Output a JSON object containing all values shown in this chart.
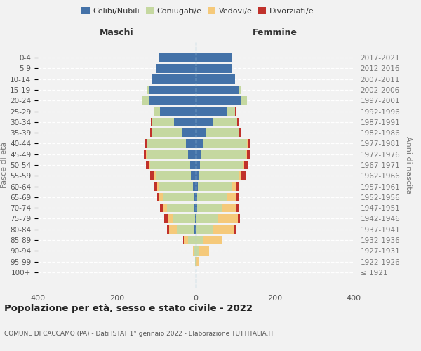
{
  "age_groups": [
    "0-4",
    "5-9",
    "10-14",
    "15-19",
    "20-24",
    "25-29",
    "30-34",
    "35-39",
    "40-44",
    "45-49",
    "50-54",
    "55-59",
    "60-64",
    "65-69",
    "70-74",
    "75-79",
    "80-84",
    "85-89",
    "90-94",
    "95-99",
    "100+"
  ],
  "birth_years": [
    "2017-2021",
    "2012-2016",
    "2007-2011",
    "2002-2006",
    "1997-2001",
    "1992-1996",
    "1987-1991",
    "1982-1986",
    "1977-1981",
    "1972-1976",
    "1967-1971",
    "1962-1966",
    "1957-1961",
    "1952-1956",
    "1947-1951",
    "1942-1946",
    "1937-1941",
    "1932-1936",
    "1927-1931",
    "1922-1926",
    "≤ 1921"
  ],
  "male_celibi": [
    95,
    100,
    110,
    120,
    120,
    90,
    55,
    35,
    25,
    20,
    15,
    12,
    8,
    4,
    3,
    2,
    3,
    0,
    0,
    0,
    0
  ],
  "male_coniugati": [
    0,
    0,
    0,
    5,
    15,
    15,
    55,
    75,
    100,
    105,
    100,
    90,
    85,
    80,
    70,
    55,
    45,
    20,
    5,
    1,
    0
  ],
  "male_vedovi": [
    0,
    0,
    0,
    0,
    0,
    0,
    0,
    0,
    0,
    1,
    2,
    3,
    5,
    8,
    10,
    15,
    20,
    10,
    3,
    1,
    0
  ],
  "male_divorziati": [
    0,
    0,
    0,
    0,
    0,
    2,
    3,
    5,
    5,
    5,
    10,
    10,
    8,
    5,
    8,
    8,
    5,
    2,
    0,
    0,
    0
  ],
  "fem_nubili": [
    90,
    90,
    100,
    110,
    115,
    80,
    45,
    25,
    20,
    12,
    10,
    8,
    5,
    3,
    3,
    2,
    2,
    0,
    0,
    0,
    0
  ],
  "fem_coniugate": [
    0,
    0,
    0,
    5,
    15,
    20,
    60,
    85,
    110,
    115,
    110,
    100,
    85,
    75,
    65,
    55,
    40,
    20,
    8,
    2,
    0
  ],
  "fem_vedove": [
    0,
    0,
    0,
    0,
    0,
    0,
    0,
    0,
    1,
    2,
    3,
    8,
    12,
    25,
    35,
    50,
    55,
    45,
    25,
    5,
    0
  ],
  "fem_divorziate": [
    0,
    0,
    0,
    0,
    0,
    2,
    3,
    5,
    8,
    8,
    10,
    12,
    8,
    5,
    5,
    5,
    5,
    0,
    0,
    0,
    0
  ],
  "color_celibi": "#4472a8",
  "color_coniugati": "#c5d8a0",
  "color_vedovi": "#f5c97a",
  "color_divorziati": "#c0312b",
  "xlim": 400,
  "title": "Popolazione per età, sesso e stato civile - 2022",
  "subtitle": "COMUNE DI CACCAMO (PA) - Dati ISTAT 1° gennaio 2022 - Elaborazione TUTTITALIA.IT",
  "ylabel_left": "Fasce di età",
  "ylabel_right": "Anni di nascita",
  "label_maschi": "Maschi",
  "label_femmine": "Femmine",
  "bg_color": "#f2f2f2",
  "legend_labels": [
    "Celibi/Nubili",
    "Coniugati/e",
    "Vedovi/e",
    "Divorziati/e"
  ]
}
